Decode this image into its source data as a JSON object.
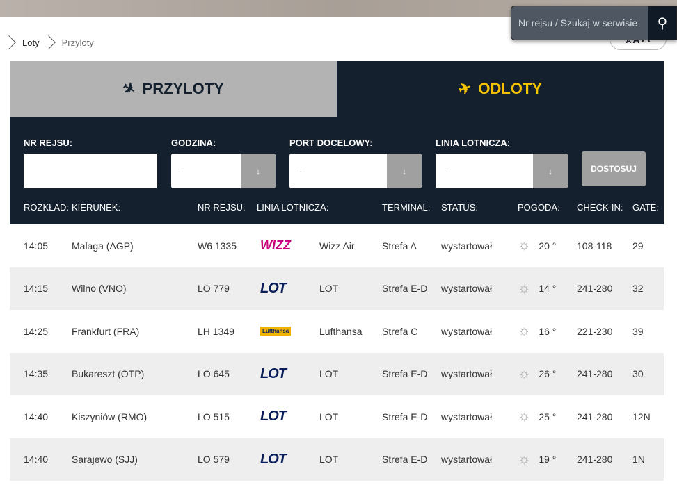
{
  "search": {
    "placeholder": "Nr rejsu / Szukaj w serwisie"
  },
  "font_size": [
    "A",
    "A",
    "A"
  ],
  "breadcrumb": [
    "Loty",
    "Przyloty"
  ],
  "tabs": {
    "arrivals": "PRZYLOTY",
    "departures": "ODLOTY"
  },
  "filters": {
    "flight_no": "NR REJSU:",
    "time": "GODZINA:",
    "port": "PORT DOCELOWY:",
    "airline": "LINIA LOTNICZA:",
    "default": "-",
    "apply": "DOSTOSUJ"
  },
  "columns": [
    "ROZKŁAD:",
    "KIERUNEK:",
    "NR REJSU:",
    "LINIA LOTNICZA:",
    "TERMINAL:",
    "STATUS:",
    "POGODA:",
    "CHECK-IN:",
    "GATE:"
  ],
  "rows": [
    [
      "14:05",
      "Malaga (AGP)",
      "W6 1335",
      "Wizz Air",
      "Strefa A",
      "wystartował",
      "20 °",
      "108-118",
      "29"
    ],
    [
      "14:15",
      "Wilno (VNO)",
      "LO 779",
      "LOT",
      "Strefa E-D",
      "wystartował",
      "14 °",
      "241-280",
      "32"
    ],
    [
      "14:25",
      "Frankfurt (FRA)",
      "LH 1349",
      "Lufthansa",
      "Strefa C",
      "wystartował",
      "16 °",
      "221-230",
      "39"
    ],
    [
      "14:35",
      "Bukareszt (OTP)",
      "LO 645",
      "LOT",
      "Strefa E-D",
      "wystartował",
      "26 °",
      "241-280",
      "30"
    ],
    [
      "14:40",
      "Kiszyniów (RMO)",
      "LO 515",
      "LOT",
      "Strefa E-D",
      "wystartował",
      "25 °",
      "241-280",
      "12N"
    ],
    [
      "14:40",
      "Sarajewo (SJJ)",
      "LO 579",
      "LOT",
      "Strefa E-D",
      "wystartował",
      "19 °",
      "241-280",
      "1N"
    ]
  ],
  "logos": [
    "wizz",
    "lot",
    "lufthansa",
    "lot",
    "lot",
    "lot"
  ],
  "colors": {
    "dark": "#14202e",
    "accent": "#f6c200",
    "inactive_tab": "#b3b3b3"
  }
}
